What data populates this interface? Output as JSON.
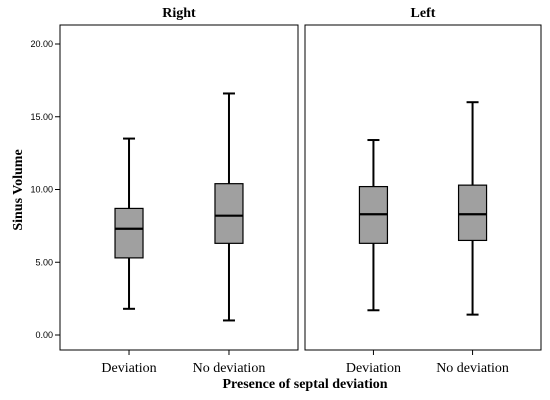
{
  "chart_data": {
    "type": "box",
    "xlabel": "Presence of septal deviation",
    "ylabel": "Sinus Volume",
    "ylim": [
      0,
      20.0
    ],
    "yticks": [
      "0.00",
      "5.00",
      "10.00",
      "15.00",
      "20.00"
    ],
    "ytick_values": [
      0,
      5,
      10,
      15,
      20
    ],
    "categories": [
      "Deviation",
      "No deviation"
    ],
    "grid": false,
    "panels": [
      {
        "title": "Right",
        "boxes": [
          {
            "category": "Deviation",
            "min": 1.8,
            "q1": 5.3,
            "median": 7.3,
            "q3": 8.7,
            "max": 13.5
          },
          {
            "category": "No deviation",
            "min": 1.0,
            "q1": 6.3,
            "median": 8.2,
            "q3": 10.4,
            "max": 16.6
          }
        ]
      },
      {
        "title": "Left",
        "boxes": [
          {
            "category": "Deviation",
            "min": 1.7,
            "q1": 6.3,
            "median": 8.3,
            "q3": 10.2,
            "max": 13.4
          },
          {
            "category": "No deviation",
            "min": 1.4,
            "q1": 6.5,
            "median": 8.3,
            "q3": 10.3,
            "max": 16.0
          }
        ]
      }
    ]
  }
}
